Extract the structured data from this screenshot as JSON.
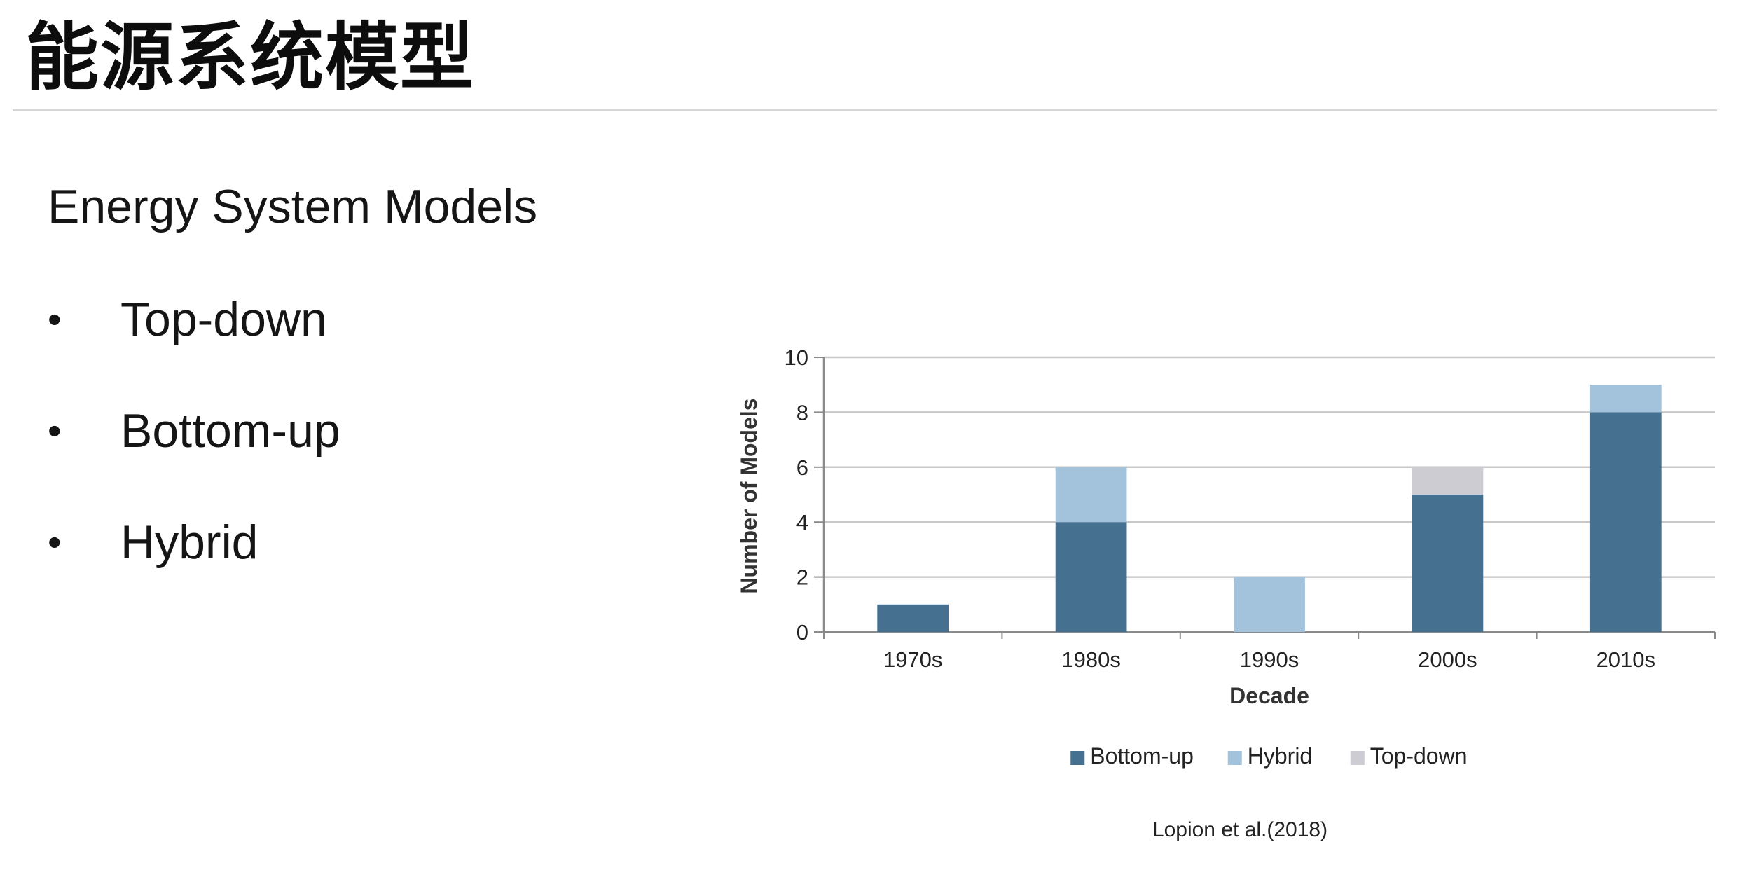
{
  "slide": {
    "title": "能源系统模型",
    "subtitle": "Energy System Models",
    "bullets": [
      {
        "label": "Top-down"
      },
      {
        "label": "Bottom-up"
      },
      {
        "label": "Hybrid"
      }
    ],
    "citation": "Lopion et al.(2018)"
  },
  "chart_data": {
    "type": "bar",
    "stacked": true,
    "categories": [
      "1970s",
      "1980s",
      "1990s",
      "2000s",
      "2010s"
    ],
    "series": [
      {
        "name": "Bottom-up",
        "values": [
          1,
          4,
          0,
          5,
          8
        ],
        "color": "#46708f"
      },
      {
        "name": "Hybrid",
        "values": [
          0,
          2,
          2,
          0,
          1
        ],
        "color": "#a3c2db"
      },
      {
        "name": "Top-down",
        "values": [
          0,
          0,
          0,
          1,
          0
        ],
        "color": "#ccccd2"
      }
    ],
    "title": "",
    "xlabel": "Decade",
    "ylabel": "Number of Models",
    "ylim": [
      0,
      10
    ],
    "yticks": [
      "0",
      "2",
      "4",
      "6",
      "8",
      "10"
    ],
    "grid": true,
    "legend_position": "bottom"
  }
}
